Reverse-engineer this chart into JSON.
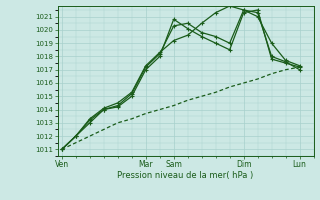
{
  "xlabel": "Pression niveau de la mer( hPa )",
  "ylim": [
    1010.5,
    1021.8
  ],
  "yticks": [
    1011,
    1012,
    1013,
    1014,
    1015,
    1016,
    1017,
    1018,
    1019,
    1020,
    1021
  ],
  "bg_color": "#cce8e4",
  "grid_color": "#a8d0cc",
  "line_color": "#1a5c1a",
  "day_labels": [
    "Ven",
    "Mar",
    "Sam",
    "Dim",
    "Lun"
  ],
  "day_positions": [
    0,
    6,
    8,
    13,
    17
  ],
  "xlim": [
    -0.3,
    18
  ],
  "num_x_points": 18,
  "series_dotted": {
    "x": [
      0,
      1,
      2,
      3,
      4,
      5,
      6,
      7,
      8,
      9,
      10,
      11,
      12,
      13,
      14,
      15,
      16,
      17
    ],
    "y": [
      1011,
      1011.5,
      1012,
      1012.5,
      1013,
      1013.3,
      1013.7,
      1014,
      1014.3,
      1014.7,
      1015,
      1015.3,
      1015.7,
      1016,
      1016.3,
      1016.7,
      1017,
      1017.2
    ]
  },
  "series_a": {
    "x": [
      0,
      1,
      2,
      3,
      4,
      5,
      6,
      7,
      8,
      9,
      10,
      11,
      12,
      13,
      14,
      15,
      16,
      17
    ],
    "y": [
      1011,
      1012,
      1013,
      1014,
      1014.2,
      1015,
      1017,
      1018,
      1020.8,
      1020.1,
      1019.5,
      1019,
      1018.5,
      1021.3,
      1021.5,
      1017.8,
      1017.5,
      1017.2
    ]
  },
  "series_b": {
    "x": [
      0,
      1,
      2,
      3,
      4,
      5,
      6,
      7,
      8,
      9,
      10,
      11,
      12,
      13,
      14,
      15,
      16,
      17
    ],
    "y": [
      1011,
      1012,
      1013.2,
      1014,
      1014.3,
      1015.2,
      1017.2,
      1018.2,
      1020.3,
      1020.5,
      1019.8,
      1019.5,
      1019,
      1021.5,
      1021.3,
      1018,
      1017.6,
      1017.0
    ]
  },
  "series_c": {
    "x": [
      0,
      1,
      2,
      3,
      4,
      5,
      6,
      7,
      8,
      9,
      10,
      11,
      12,
      13,
      14,
      15,
      16,
      17
    ],
    "y": [
      1011,
      1012,
      1013.3,
      1014.1,
      1014.5,
      1015.3,
      1017.3,
      1018.3,
      1019.2,
      1019.6,
      1020.5,
      1021.3,
      1021.8,
      1021.5,
      1021.0,
      1019,
      1017.7,
      1017.3
    ]
  }
}
